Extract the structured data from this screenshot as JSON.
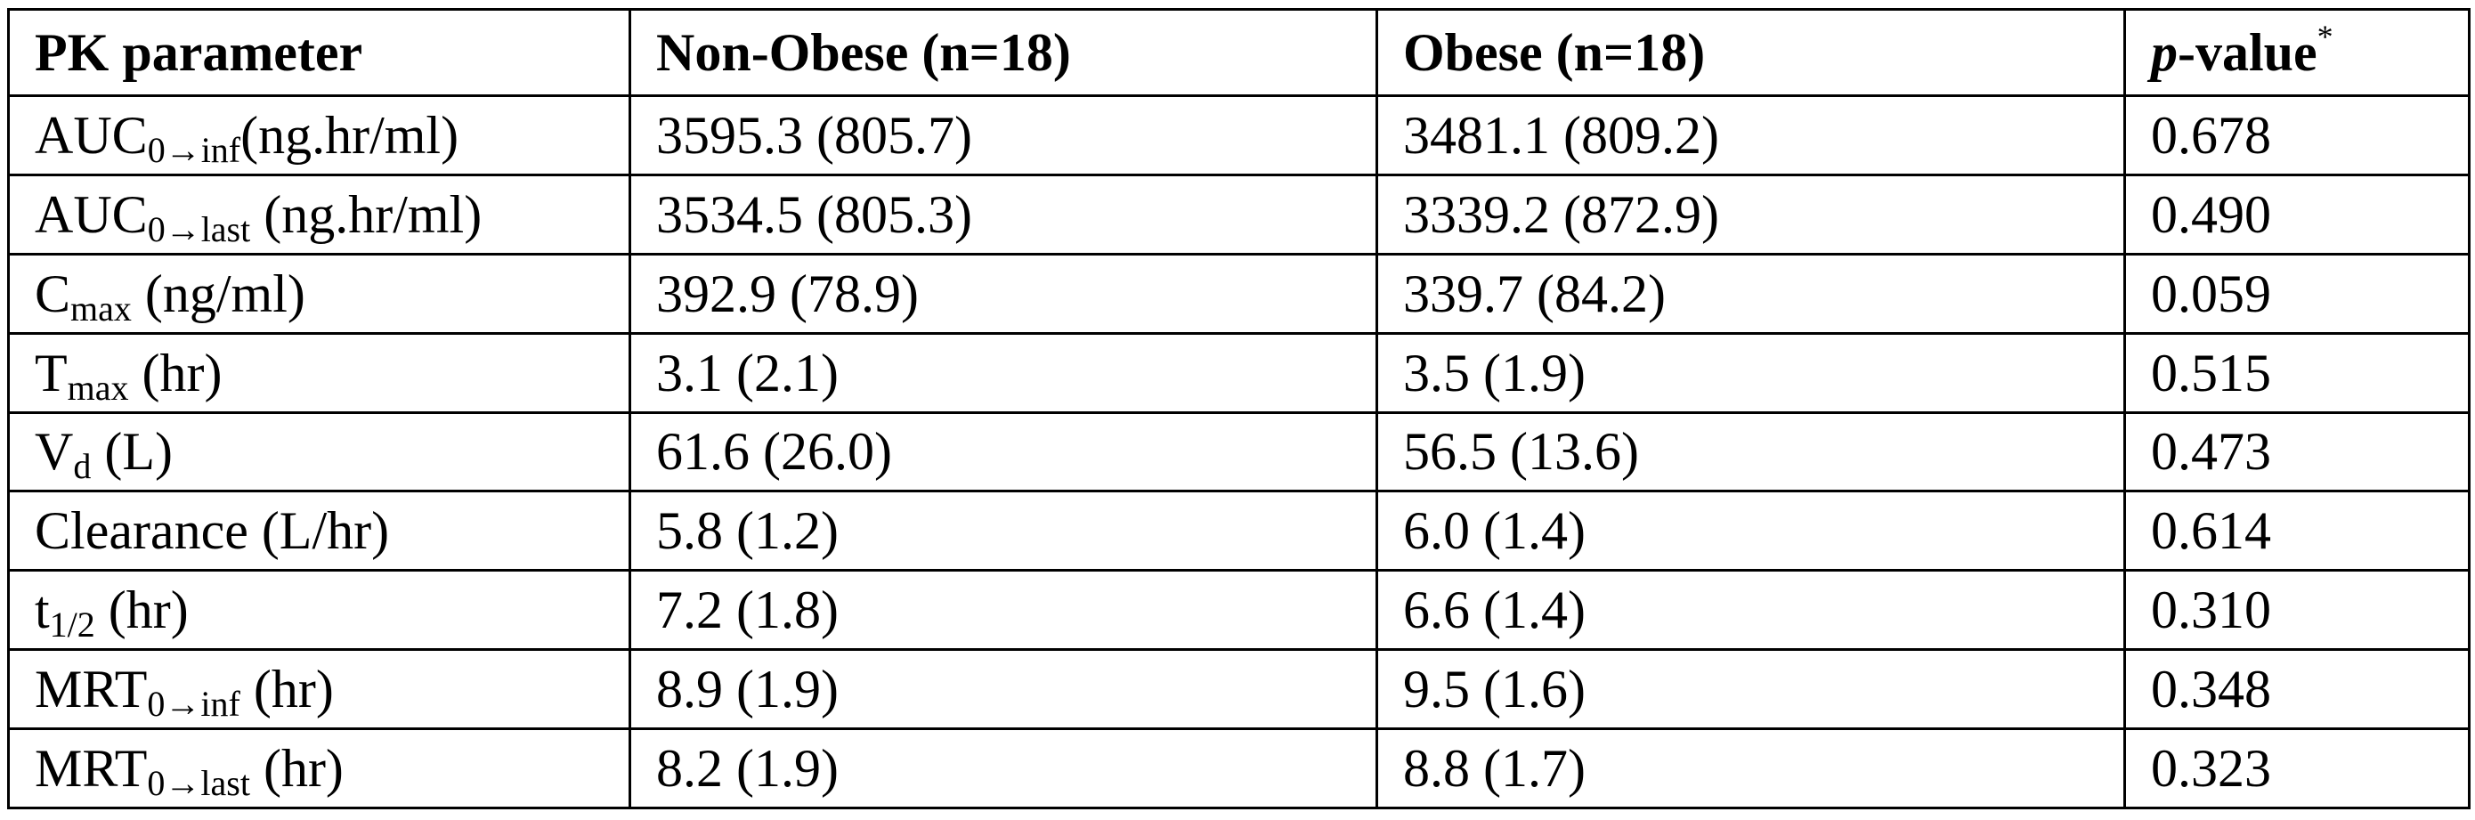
{
  "table": {
    "headers": {
      "param": "PK parameter",
      "non_obese": "Non-Obese (n=18)",
      "obese": "Obese (n=18)",
      "p_italic": "p",
      "p_rest": "-value",
      "p_mark": "*"
    },
    "rows": [
      {
        "base": "AUC",
        "sub": "0→inf",
        "unit": "(ng.hr/ml)",
        "non_obese": "3595.3 (805.7)",
        "obese": "3481.1 (809.2)",
        "p": "0.678"
      },
      {
        "base": "AUC",
        "sub": "0→last",
        "unit": " (ng.hr/ml)",
        "non_obese": "3534.5 (805.3)",
        "obese": "3339.2 (872.9)",
        "p": "0.490"
      },
      {
        "base": "C",
        "sub": "max",
        "unit": " (ng/ml)",
        "non_obese": "392.9 (78.9)",
        "obese": "339.7 (84.2)",
        "p": "0.059"
      },
      {
        "base": "T",
        "sub": "max",
        "unit": " (hr)",
        "non_obese": "3.1 (2.1)",
        "obese": "3.5 (1.9)",
        "p": "0.515"
      },
      {
        "base": "V",
        "sub": "d",
        "unit": " (L)",
        "non_obese": "61.6 (26.0)",
        "obese": "56.5 (13.6)",
        "p": "0.473"
      },
      {
        "base": "Clearance",
        "sub": "",
        "unit": " (L/hr)",
        "non_obese": "5.8 (1.2)",
        "obese": "6.0 (1.4)",
        "p": "0.614"
      },
      {
        "base": "t",
        "sub": "1/2",
        "unit": " (hr)",
        "non_obese": "7.2 (1.8)",
        "obese": "6.6 (1.4)",
        "p": "0.310"
      },
      {
        "base": "MRT",
        "sub": "0→inf",
        "unit": " (hr)",
        "non_obese": "8.9 (1.9)",
        "obese": "9.5 (1.6)",
        "p": "0.348"
      },
      {
        "base": "MRT",
        "sub": "0→last",
        "unit": " (hr)",
        "non_obese": "8.2 (1.9)",
        "obese": "8.8 (1.7)",
        "p": "0.323"
      }
    ]
  }
}
